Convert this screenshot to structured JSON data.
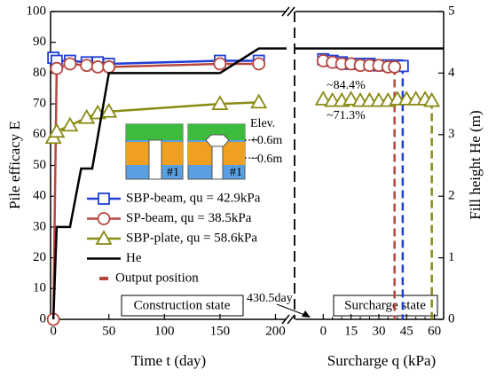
{
  "chart_data": {
    "type": "line",
    "ylabel": "Pile efficacy E",
    "y2label": "Fill height He (m)",
    "ylim": [
      0,
      100
    ],
    "yticks": [
      0,
      10,
      20,
      30,
      40,
      50,
      60,
      70,
      80,
      90,
      100
    ],
    "y2lim": [
      0,
      5
    ],
    "y2ticks": [
      0,
      1,
      2,
      3,
      4,
      5
    ],
    "legend_extra": "Output position",
    "annotations": [
      "~84.4%",
      "~71.3%",
      "Elev.",
      "+0.6m",
      "−0.6m",
      "#1",
      "#1",
      "430.5day"
    ],
    "panels": [
      {
        "xlabel": "Time t (day)",
        "state": "Construction state",
        "xlim": [
          -2.5,
          210
        ],
        "xticks": [
          0,
          50,
          100,
          150,
          200
        ],
        "xminor": [],
        "series": [
          {
            "name": "SBP-beam, qu = 42.9kPa",
            "color": "#1f3fd6",
            "marker": "square",
            "x": [
              0,
              3,
              15,
              30,
              40,
              50,
              150,
              185
            ],
            "values": [
              85,
              84,
              84,
              83.5,
              83.5,
              83,
              84,
              84
            ]
          },
          {
            "name": "SP-beam, qu = 38.5kPa",
            "color": "#b8463f",
            "marker": "circle",
            "x": [
              0,
              3,
              15,
              30,
              40,
              50,
              150,
              185
            ],
            "values": [
              0,
              81.5,
              83,
              82.5,
              82,
              82,
              83,
              83
            ]
          },
          {
            "name": "SBP-plate, qu = 58.6kPa",
            "color": "#8a8a14",
            "marker": "triangle",
            "x": [
              0,
              3,
              15,
              30,
              40,
              50,
              150,
              185
            ],
            "values": [
              59,
              61,
              63,
              65.5,
              67,
              67.5,
              70,
              70.5
            ]
          },
          {
            "name": "He",
            "color": "#000000",
            "marker": "none",
            "axis": "y2",
            "x": [
              0,
              3,
              15,
              25,
              35,
              50,
              150,
              185,
              210
            ],
            "values": [
              0,
              1.5,
              1.5,
              2.45,
              2.45,
              4,
              4,
              4.4,
              4.4
            ]
          }
        ]
      },
      {
        "xlabel": "Surcharge q (kPa)",
        "state": "Surcharge state",
        "xlim": [
          -15,
          65
        ],
        "xticks": [
          0,
          15,
          30,
          45,
          60
        ],
        "xminor": [
          5,
          10,
          20,
          25,
          35,
          40,
          50,
          55
        ],
        "series": [
          {
            "color": "#1f3fd6",
            "marker": "square",
            "failure_x": 42.9,
            "x": [
              0,
              5,
              10,
              15,
              20,
              25,
              30,
              35,
              40,
              42.9
            ],
            "values": [
              84.5,
              84,
              83.5,
              83,
              83,
              83,
              82.5,
              82.5,
              82.5,
              82.3
            ]
          },
          {
            "color": "#b8463f",
            "marker": "circle",
            "failure_x": 38.5,
            "x": [
              0,
              5,
              10,
              15,
              20,
              25,
              30,
              35,
              38.5
            ],
            "values": [
              84,
              83.5,
              83,
              83,
              82.5,
              82.5,
              82.5,
              82,
              82
            ]
          },
          {
            "color": "#8a8a14",
            "marker": "triangle",
            "failure_x": 58.6,
            "x": [
              0,
              5,
              10,
              15,
              20,
              25,
              30,
              35,
              40,
              45,
              50,
              55,
              58.6
            ],
            "values": [
              71.5,
              71,
              71,
              71.5,
              71,
              71,
              71,
              71,
              71.5,
              71.5,
              71.5,
              71.5,
              71
            ]
          },
          {
            "color": "#000000",
            "marker": "none",
            "axis": "y2",
            "x": [
              -15,
              65
            ],
            "values": [
              4.4,
              4.4
            ]
          }
        ]
      }
    ]
  }
}
